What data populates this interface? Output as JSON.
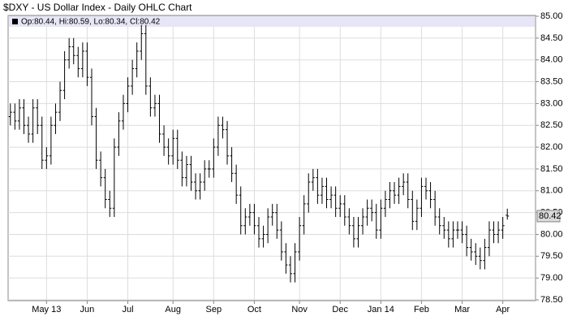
{
  "chart_data": {
    "type": "ohlc",
    "title": "$DXY - US Dollar Index - Daily OHLC Chart",
    "ohlc_legend": "Op:80.44, Hi:80.59, Lo:80.34, Cl:80.42",
    "color": "#000000",
    "grid": true,
    "categories": [
      null,
      null,
      null,
      null,
      null,
      null,
      null,
      null,
      "May 13",
      null,
      null,
      null,
      null,
      null,
      null,
      null,
      null,
      "Jun",
      null,
      null,
      null,
      null,
      null,
      null,
      null,
      null,
      "Jul",
      null,
      null,
      null,
      null,
      null,
      null,
      null,
      null,
      null,
      "Aug",
      null,
      null,
      null,
      null,
      null,
      null,
      null,
      null,
      "Sep",
      null,
      null,
      null,
      null,
      null,
      null,
      null,
      null,
      "Oct",
      null,
      null,
      null,
      null,
      null,
      null,
      null,
      null,
      null,
      "Nov",
      null,
      null,
      null,
      null,
      null,
      null,
      null,
      null,
      "Dec",
      null,
      null,
      null,
      null,
      null,
      null,
      null,
      null,
      "Jan 14",
      null,
      null,
      null,
      null,
      null,
      null,
      null,
      null,
      "Feb",
      null,
      null,
      null,
      null,
      null,
      null,
      null,
      null,
      "Mar",
      null,
      null,
      null,
      null,
      null,
      null,
      null,
      null,
      "Apr",
      null
    ],
    "open": [
      82.7,
      82.8,
      82.6,
      82.9,
      82.5,
      82.3,
      82.9,
      82.5,
      81.7,
      81.8,
      82.5,
      82.8,
      83.3,
      84.0,
      84.3,
      84.1,
      83.8,
      84.2,
      83.6,
      82.7,
      81.7,
      81.3,
      80.8,
      80.6,
      82.0,
      82.6,
      83.0,
      83.4,
      83.8,
      84.2,
      84.6,
      83.4,
      82.9,
      83.0,
      82.3,
      82.0,
      81.8,
      82.2,
      81.7,
      81.3,
      81.6,
      81.2,
      81.0,
      81.2,
      81.5,
      81.5,
      82.0,
      82.5,
      82.4,
      81.8,
      81.4,
      80.9,
      80.2,
      80.4,
      80.5,
      80.2,
      79.9,
      80.0,
      80.4,
      80.5,
      80.1,
      79.6,
      79.3,
      79.1,
      79.6,
      80.2,
      80.7,
      81.2,
      81.3,
      80.9,
      81.1,
      80.8,
      80.9,
      80.6,
      80.7,
      80.4,
      80.2,
      79.9,
      80.2,
      80.4,
      80.6,
      80.5,
      80.1,
      80.6,
      80.8,
      81.0,
      80.9,
      81.1,
      81.2,
      80.8,
      80.3,
      80.6,
      81.1,
      81.0,
      80.8,
      80.4,
      80.2,
      80.1,
      79.9,
      80.1,
      80.1,
      80.0,
      79.7,
      79.6,
      79.5,
      79.4,
      79.7,
      80.1,
      80.0,
      80.1,
      80.44
    ],
    "high": [
      83.0,
      83.0,
      83.1,
      83.1,
      82.7,
      83.1,
      83.1,
      82.7,
      82.0,
      82.7,
      83.0,
      83.5,
      84.2,
      84.5,
      84.5,
      84.3,
      84.4,
      84.4,
      83.8,
      82.9,
      81.9,
      81.5,
      81.0,
      82.2,
      82.8,
      83.2,
      83.6,
      84.0,
      84.4,
      84.8,
      84.8,
      83.6,
      83.2,
      83.2,
      82.5,
      82.2,
      82.4,
      82.4,
      81.9,
      81.8,
      81.8,
      81.4,
      81.4,
      81.7,
      81.7,
      82.2,
      82.7,
      82.7,
      82.6,
      82.0,
      81.6,
      81.1,
      80.6,
      80.7,
      80.7,
      80.4,
      80.2,
      80.6,
      80.7,
      80.7,
      80.3,
      79.8,
      79.5,
      79.8,
      80.4,
      80.9,
      81.4,
      81.5,
      81.5,
      81.3,
      81.3,
      81.1,
      81.1,
      80.9,
      80.9,
      80.6,
      80.4,
      80.4,
      80.6,
      80.8,
      80.8,
      80.7,
      80.8,
      81.0,
      81.2,
      81.2,
      81.3,
      81.4,
      81.4,
      81.0,
      80.8,
      81.3,
      81.3,
      81.2,
      81.0,
      80.6,
      80.4,
      80.3,
      80.3,
      80.3,
      80.3,
      80.2,
      79.9,
      79.8,
      79.7,
      79.9,
      80.3,
      80.3,
      80.3,
      80.4,
      80.59
    ],
    "low": [
      82.5,
      82.4,
      82.4,
      82.3,
      82.1,
      82.1,
      82.3,
      81.5,
      81.5,
      81.6,
      82.3,
      82.6,
      83.1,
      83.8,
      83.9,
      83.6,
      83.6,
      83.4,
      82.5,
      81.5,
      81.1,
      80.6,
      80.4,
      80.4,
      81.8,
      82.4,
      82.8,
      83.2,
      83.6,
      84.0,
      83.2,
      82.7,
      82.7,
      82.1,
      81.8,
      81.6,
      81.6,
      81.5,
      81.1,
      81.1,
      81.0,
      80.8,
      80.8,
      81.0,
      81.3,
      81.3,
      81.8,
      82.2,
      81.6,
      81.2,
      80.7,
      80.0,
      80.0,
      80.2,
      80.0,
      79.7,
      79.7,
      79.8,
      80.2,
      79.9,
      79.4,
      79.1,
      78.9,
      78.9,
      79.4,
      80.0,
      80.5,
      81.0,
      80.7,
      80.7,
      80.6,
      80.6,
      80.4,
      80.4,
      80.2,
      80.0,
      79.7,
      79.7,
      80.0,
      80.2,
      80.3,
      79.9,
      79.9,
      80.4,
      80.6,
      80.7,
      80.7,
      80.9,
      80.6,
      80.1,
      80.1,
      80.4,
      80.8,
      80.6,
      80.2,
      80.0,
      79.9,
      79.7,
      79.7,
      79.9,
      79.8,
      79.5,
      79.4,
      79.3,
      79.2,
      79.2,
      79.5,
      79.8,
      79.8,
      79.9,
      80.34
    ],
    "close": [
      82.8,
      82.6,
      82.9,
      82.5,
      82.3,
      82.9,
      82.5,
      81.7,
      81.8,
      82.5,
      82.8,
      83.3,
      84.0,
      84.3,
      84.1,
      83.8,
      84.2,
      83.6,
      82.7,
      81.7,
      81.3,
      80.8,
      80.6,
      82.0,
      82.6,
      83.0,
      83.4,
      83.8,
      84.2,
      84.6,
      83.4,
      82.9,
      83.0,
      82.3,
      82.0,
      81.8,
      82.2,
      81.7,
      81.3,
      81.6,
      81.2,
      81.0,
      81.2,
      81.5,
      81.5,
      82.0,
      82.5,
      82.4,
      81.8,
      81.4,
      80.9,
      80.2,
      80.4,
      80.5,
      80.2,
      79.9,
      80.0,
      80.4,
      80.5,
      80.1,
      79.6,
      79.3,
      79.1,
      79.6,
      80.2,
      80.7,
      81.2,
      81.3,
      80.9,
      81.1,
      80.8,
      80.9,
      80.6,
      80.7,
      80.4,
      80.2,
      79.9,
      80.2,
      80.4,
      80.6,
      80.5,
      80.1,
      80.6,
      80.8,
      81.0,
      80.9,
      81.1,
      81.2,
      80.8,
      80.3,
      80.6,
      81.1,
      81.0,
      80.8,
      80.4,
      80.2,
      80.1,
      79.9,
      80.1,
      80.1,
      80.0,
      79.7,
      79.6,
      79.5,
      79.4,
      79.7,
      80.1,
      80.0,
      80.1,
      80.2,
      80.42
    ],
    "ylim": [
      78.5,
      85
    ],
    "yticks": [
      {
        "value": 78.5,
        "label": "78.50"
      },
      {
        "value": 79,
        "label": "79.00"
      },
      {
        "value": 79.5,
        "label": "79.50"
      },
      {
        "value": 80,
        "label": "80.00"
      },
      {
        "value": 80.5,
        "label": "80.50"
      },
      {
        "value": 81,
        "label": "81.00"
      },
      {
        "value": 81.5,
        "label": "81.50"
      },
      {
        "value": 82,
        "label": "82.00"
      },
      {
        "value": 82.5,
        "label": "82.50"
      },
      {
        "value": 83,
        "label": "83.00"
      },
      {
        "value": 83.5,
        "label": "83.50"
      },
      {
        "value": 84,
        "label": "84.00"
      },
      {
        "value": 84.5,
        "label": "84.50"
      },
      {
        "value": 85,
        "label": "85.00"
      }
    ]
  }
}
